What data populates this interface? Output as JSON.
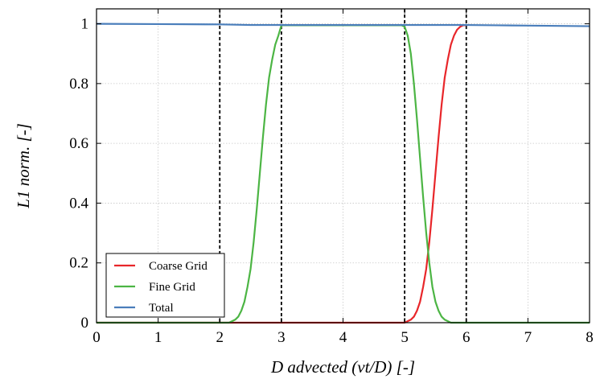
{
  "chart_data": {
    "type": "line",
    "title": "",
    "xlabel": "D advected (vt/D) [-]",
    "ylabel": "L1 norm. [-]",
    "xlim": [
      0,
      8
    ],
    "ylim": [
      0,
      1.05
    ],
    "xticks": [
      "0",
      "1",
      "2",
      "3",
      "4",
      "5",
      "6",
      "7",
      "8"
    ],
    "yticks": [
      "0",
      "0.2",
      "0.4",
      "0.6",
      "0.8",
      "1"
    ],
    "grid": true,
    "legend_position": "bottom-left",
    "vlines": [
      2,
      3,
      5,
      6
    ],
    "series": [
      {
        "name": "Coarse Grid",
        "color": "#e8262a",
        "x": [
          0,
          1.9,
          1.95,
          2.0,
          2.05,
          2.1,
          2.15,
          2.2,
          2.25,
          2.3,
          2.35,
          2.4,
          2.45,
          2.5,
          2.55,
          2.6,
          2.65,
          2.7,
          2.75,
          2.8,
          2.85,
          2.9,
          2.95,
          3.0,
          4.95,
          5.0,
          5.05,
          5.1,
          5.15,
          5.2,
          5.25,
          5.3,
          5.35,
          5.4,
          5.45,
          5.5,
          5.55,
          5.6,
          5.65,
          5.7,
          5.75,
          5.8,
          5.85,
          5.9,
          5.95,
          6.0
        ],
        "values": [
          0,
          0,
          0,
          0,
          0,
          0,
          0,
          0,
          0,
          0,
          0,
          0,
          0,
          0,
          0,
          0,
          0,
          0,
          0,
          0,
          0,
          0,
          0,
          0,
          0,
          0,
          0.005,
          0.01,
          0.02,
          0.04,
          0.07,
          0.12,
          0.18,
          0.27,
          0.38,
          0.5,
          0.62,
          0.73,
          0.82,
          0.88,
          0.93,
          0.96,
          0.98,
          0.99,
          0.995,
          0.995
        ]
      },
      {
        "name": "Fine Grid",
        "color": "#4cb544",
        "x": [
          0,
          1.9,
          1.95,
          2.0,
          2.05,
          2.1,
          2.15,
          2.2,
          2.25,
          2.3,
          2.35,
          2.4,
          2.45,
          2.5,
          2.55,
          2.6,
          2.65,
          2.7,
          2.75,
          2.8,
          2.85,
          2.9,
          2.95,
          3.0,
          4.95,
          5.0,
          5.05,
          5.1,
          5.15,
          5.2,
          5.25,
          5.3,
          5.35,
          5.4,
          5.45,
          5.5,
          5.55,
          5.6,
          5.65,
          5.7,
          5.75,
          5.8,
          5.85,
          5.9,
          5.95,
          6.0,
          8.0
        ],
        "values": [
          0,
          0,
          0,
          0,
          0,
          0,
          0,
          0.005,
          0.01,
          0.02,
          0.04,
          0.07,
          0.12,
          0.18,
          0.27,
          0.38,
          0.5,
          0.62,
          0.73,
          0.82,
          0.88,
          0.93,
          0.96,
          0.995,
          0.995,
          0.99,
          0.96,
          0.9,
          0.8,
          0.68,
          0.55,
          0.42,
          0.3,
          0.2,
          0.12,
          0.07,
          0.04,
          0.02,
          0.01,
          0.005,
          0,
          0,
          0,
          0,
          0,
          0,
          0
        ]
      },
      {
        "name": "Total",
        "color": "#4a7ebb",
        "x": [
          0,
          1,
          2,
          2.5,
          3,
          4,
          5,
          6,
          6.5,
          7,
          7.5,
          8
        ],
        "values": [
          1.0,
          0.999,
          0.998,
          0.996,
          0.996,
          0.996,
          0.996,
          0.996,
          0.995,
          0.994,
          0.993,
          0.992
        ]
      }
    ]
  }
}
